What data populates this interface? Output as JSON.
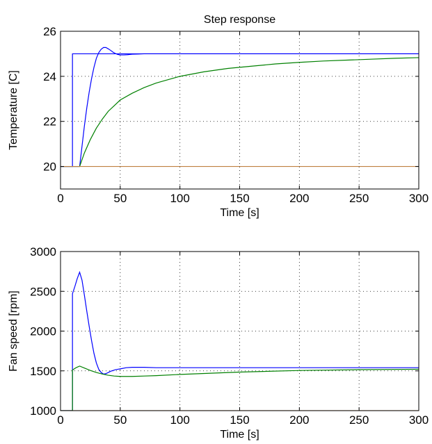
{
  "colors": {
    "series_1": "#0000ff",
    "series_2": "#008000",
    "series_3": "#bf8040",
    "grid": "#000000",
    "axes": "#000000"
  },
  "chart_data": [
    {
      "type": "line",
      "title": "Step response",
      "xlabel": "Time [s]",
      "ylabel": "Temperature [C]",
      "xlim": [
        0,
        300
      ],
      "ylim": [
        19,
        26
      ],
      "xticks": [
        0,
        50,
        100,
        150,
        200,
        250,
        300
      ],
      "yticks": [
        20,
        22,
        24,
        26
      ],
      "grid": true,
      "series": [
        {
          "color": "blue",
          "x": [
            0,
            10,
            10.01,
            300
          ],
          "y": [
            20,
            20,
            25,
            25
          ]
        },
        {
          "color": "blue",
          "x": [
            0,
            16,
            18,
            20,
            22,
            24,
            26,
            28,
            30,
            32,
            34,
            36,
            38,
            40,
            42,
            44,
            46,
            48,
            50,
            53,
            56,
            60,
            65,
            70,
            80,
            100,
            150,
            200,
            250,
            300
          ],
          "y": [
            20,
            20,
            20.9,
            21.8,
            22.6,
            23.3,
            23.9,
            24.4,
            24.8,
            25.05,
            25.2,
            25.28,
            25.28,
            25.22,
            25.15,
            25.07,
            25.01,
            24.97,
            24.95,
            24.95,
            24.96,
            24.98,
            24.99,
            25,
            25,
            25,
            25,
            25,
            25,
            25
          ]
        },
        {
          "color": "green",
          "x": [
            0,
            16,
            20,
            25,
            30,
            35,
            40,
            45,
            50,
            60,
            70,
            80,
            90,
            100,
            120,
            140,
            160,
            180,
            200,
            220,
            240,
            260,
            280,
            300
          ],
          "y": [
            20,
            20,
            20.6,
            21.2,
            21.7,
            22.1,
            22.45,
            22.7,
            22.95,
            23.25,
            23.5,
            23.7,
            23.85,
            24.0,
            24.2,
            24.35,
            24.45,
            24.55,
            24.62,
            24.68,
            24.72,
            24.76,
            24.8,
            24.83
          ]
        },
        {
          "color": "orange",
          "x": [
            0,
            300
          ],
          "y": [
            20,
            20
          ]
        }
      ]
    },
    {
      "type": "line",
      "title": "",
      "xlabel": "Time [s]",
      "ylabel": "Fan speed [rpm]",
      "xlim": [
        0,
        300
      ],
      "ylim": [
        1000,
        3000
      ],
      "xticks": [
        0,
        50,
        100,
        150,
        200,
        250,
        300
      ],
      "yticks": [
        1000,
        1500,
        2000,
        2500,
        3000
      ],
      "grid": true,
      "series": [
        {
          "color": "blue",
          "x": [
            0,
            10,
            10.01,
            12,
            14,
            16,
            18,
            20,
            22,
            24,
            26,
            28,
            30,
            32,
            34,
            36,
            38,
            40,
            42,
            44,
            46,
            48,
            50,
            55,
            60,
            70,
            80,
            100,
            150,
            200,
            250,
            300
          ],
          "y": [
            1000,
            1000,
            2470,
            2560,
            2660,
            2740,
            2640,
            2450,
            2250,
            2060,
            1880,
            1720,
            1600,
            1520,
            1480,
            1460,
            1465,
            1480,
            1495,
            1505,
            1515,
            1520,
            1525,
            1540,
            1545,
            1545,
            1540,
            1540,
            1540,
            1540,
            1540,
            1540
          ]
        },
        {
          "color": "green",
          "x": [
            0,
            10,
            10.01,
            13,
            16,
            20,
            25,
            30,
            35,
            40,
            45,
            50,
            60,
            70,
            80,
            100,
            150,
            200,
            250,
            300
          ],
          "y": [
            1000,
            1000,
            1510,
            1540,
            1560,
            1535,
            1505,
            1480,
            1460,
            1445,
            1435,
            1430,
            1430,
            1435,
            1440,
            1455,
            1485,
            1505,
            1515,
            1520
          ]
        },
        {
          "color": "orange",
          "x": [
            0,
            300
          ],
          "y": [
            1000,
            1000
          ]
        }
      ]
    }
  ]
}
